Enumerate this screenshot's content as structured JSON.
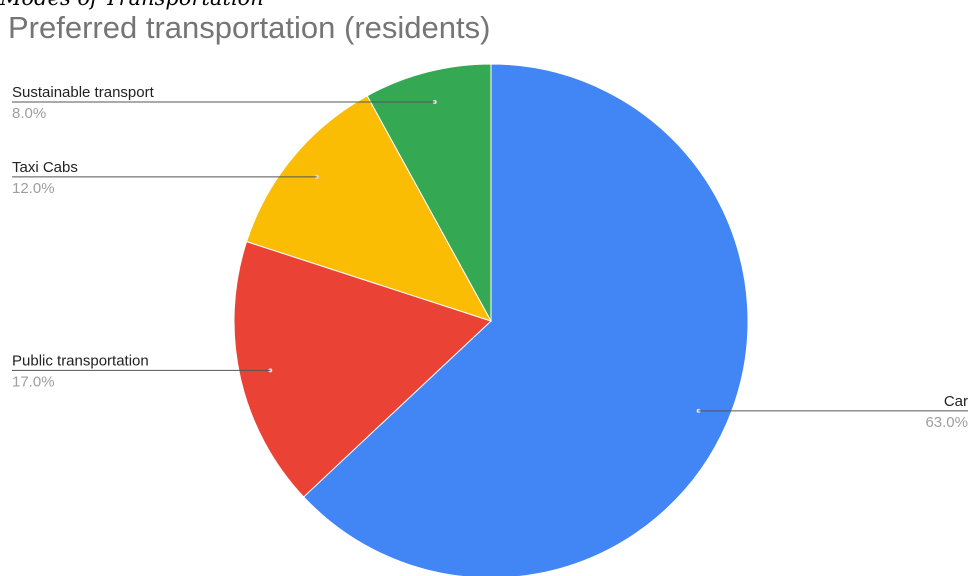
{
  "caption_fragment": "Modes of Transportation",
  "chart_data": {
    "type": "pie",
    "title": "Preferred transportation (residents)",
    "slices": [
      {
        "label": "Car",
        "value": 63.0,
        "percent_label": "63.0%",
        "color": "#4285f4",
        "label_side": "right"
      },
      {
        "label": "Public transportation",
        "value": 17.0,
        "percent_label": "17.0%",
        "color": "#ea4335",
        "label_side": "left"
      },
      {
        "label": "Taxi Cabs",
        "value": 12.0,
        "percent_label": "12.0%",
        "color": "#fbbc04",
        "label_side": "left"
      },
      {
        "label": "Sustainable transport",
        "value": 8.0,
        "percent_label": "8.0%",
        "color": "#34a853",
        "label_side": "left"
      }
    ],
    "start_angle_deg": 0,
    "direction": "clockwise",
    "legend": "labels beside slices"
  }
}
